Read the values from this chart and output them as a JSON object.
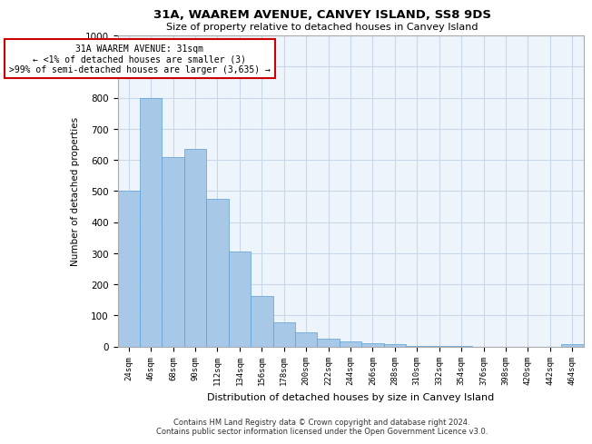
{
  "title1": "31A, WAAREM AVENUE, CANVEY ISLAND, SS8 9DS",
  "title2": "Size of property relative to detached houses in Canvey Island",
  "xlabel": "Distribution of detached houses by size in Canvey Island",
  "ylabel": "Number of detached properties",
  "categories": [
    "24sqm",
    "46sqm",
    "68sqm",
    "90sqm",
    "112sqm",
    "134sqm",
    "156sqm",
    "178sqm",
    "200sqm",
    "222sqm",
    "244sqm",
    "266sqm",
    "288sqm",
    "310sqm",
    "332sqm",
    "354sqm",
    "376sqm",
    "398sqm",
    "420sqm",
    "442sqm",
    "464sqm"
  ],
  "values": [
    500,
    800,
    610,
    635,
    475,
    305,
    163,
    78,
    45,
    24,
    15,
    10,
    8,
    2,
    1,
    1,
    0,
    0,
    0,
    0,
    8
  ],
  "bar_color": "#a8c8e8",
  "bar_edge_color": "#5a9fd4",
  "grid_color": "#c8d8e8",
  "background_color": "#eef4fb",
  "annotation_box_color": "#cc0000",
  "annotation_text": "31A WAAREM AVENUE: 31sqm\n← <1% of detached houses are smaller (3)\n>99% of semi-detached houses are larger (3,635) →",
  "footer1": "Contains HM Land Registry data © Crown copyright and database right 2024.",
  "footer2": "Contains public sector information licensed under the Open Government Licence v3.0.",
  "ylim": [
    0,
    1000
  ],
  "yticks": [
    0,
    100,
    200,
    300,
    400,
    500,
    600,
    700,
    800,
    900,
    1000
  ]
}
